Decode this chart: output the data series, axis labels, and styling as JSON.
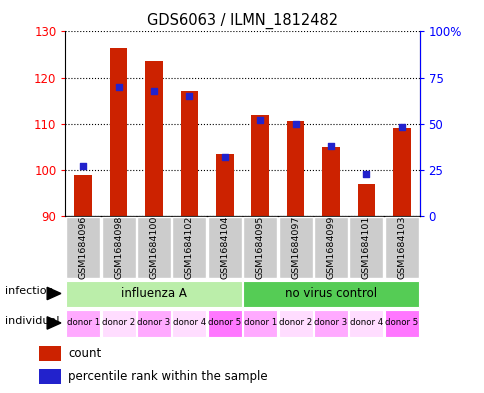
{
  "title": "GDS6063 / ILMN_1812482",
  "samples": [
    "GSM1684096",
    "GSM1684098",
    "GSM1684100",
    "GSM1684102",
    "GSM1684104",
    "GSM1684095",
    "GSM1684097",
    "GSM1684099",
    "GSM1684101",
    "GSM1684103"
  ],
  "counts": [
    99.0,
    126.5,
    123.5,
    117.0,
    103.5,
    112.0,
    110.5,
    105.0,
    97.0,
    109.0
  ],
  "percentiles": [
    27,
    70,
    68,
    65,
    32,
    52,
    50,
    38,
    23,
    48
  ],
  "ylim_left": [
    90,
    130
  ],
  "ylim_right": [
    0,
    100
  ],
  "yticks_left": [
    90,
    100,
    110,
    120,
    130
  ],
  "yticks_right": [
    0,
    25,
    50,
    75,
    100
  ],
  "ytick_labels_right": [
    "0",
    "25",
    "50",
    "75",
    "100%"
  ],
  "infection_groups": [
    {
      "label": "influenza A",
      "start": 0,
      "end": 5
    },
    {
      "label": "no virus control",
      "start": 5,
      "end": 10
    }
  ],
  "infection_colors": [
    "#bbeeaa",
    "#55cc55"
  ],
  "individual_labels": [
    "donor 1",
    "donor 2",
    "donor 3",
    "donor 4",
    "donor 5",
    "donor 1",
    "donor 2",
    "donor 3",
    "donor 4",
    "donor 5"
  ],
  "individual_colors_alt": [
    "#ffaaff",
    "#ffddff",
    "#ffaaff",
    "#ffddff",
    "#ff77ff",
    "#ffaaff",
    "#ffddff",
    "#ffaaff",
    "#ffddff",
    "#ff77ff"
  ],
  "bar_color": "#cc2200",
  "dot_color": "#2222cc",
  "bar_bottom": 90,
  "bar_width": 0.5,
  "sample_box_color": "#cccccc",
  "legend_count_color": "#cc2200",
  "legend_pct_color": "#2222cc"
}
